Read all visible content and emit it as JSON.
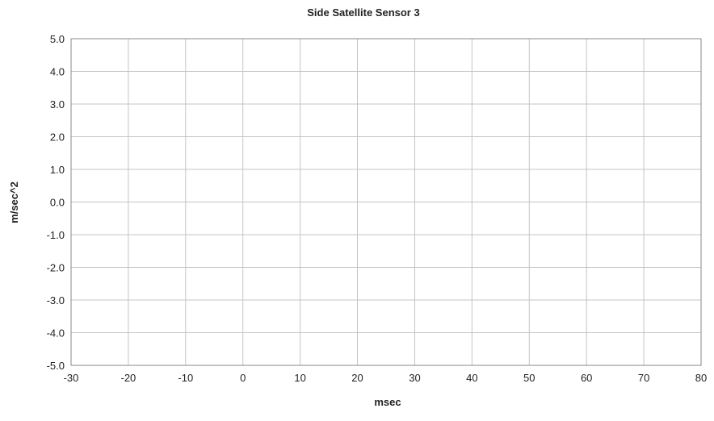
{
  "chart_data": {
    "type": "line",
    "title": "Side Satellite Sensor 3",
    "xlabel": "msec",
    "ylabel": "m/sec^2",
    "xlim": [
      -30,
      80
    ],
    "ylim": [
      -5,
      5
    ],
    "x_ticks": [
      -30,
      -20,
      -10,
      0,
      10,
      20,
      30,
      40,
      50,
      60,
      70,
      80
    ],
    "y_ticks": [
      5,
      4,
      3,
      2,
      1,
      0,
      -1,
      -2,
      -3,
      -4,
      -5
    ],
    "x_tick_labels": [
      "-30",
      "-20",
      "-10",
      "0",
      "10",
      "20",
      "30",
      "40",
      "50",
      "60",
      "70",
      "80"
    ],
    "y_tick_labels": [
      "5.0",
      "4.0",
      "3.0",
      "2.0",
      "1.0",
      "0.0",
      "-1.0",
      "-2.0",
      "-3.0",
      "-4.0",
      "-5.0"
    ],
    "grid": true,
    "legend": "none",
    "series": []
  },
  "colors": {
    "grid": "#c4c4c4",
    "axis": "#888888",
    "text": "#222222",
    "background": "#ffffff"
  }
}
